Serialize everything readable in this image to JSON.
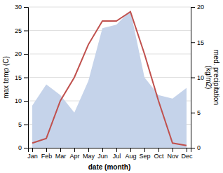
{
  "chart_data": {
    "type": "line",
    "x_label": "date (month)",
    "y_label": "max temp (C)",
    "y2_label": "med. precipitation\n(kg/m2)",
    "categories": [
      "Jan",
      "Feb",
      "Mar",
      "Apr",
      "May",
      "Jun",
      "Jul",
      "Aug",
      "Sep",
      "Oct",
      "Nov",
      "Dec"
    ],
    "series": [
      {
        "type": "area",
        "color": "#c5d3ea",
        "axis": "y2",
        "values": [
          6,
          9,
          7.5,
          5,
          9.5,
          17,
          17.5,
          19.5,
          10,
          7.5,
          7,
          8.5
        ]
      },
      {
        "type": "line",
        "color": "#c0504d",
        "values": [
          1,
          2,
          10,
          15,
          22,
          27,
          27,
          29,
          20,
          10,
          1,
          0.5
        ]
      }
    ],
    "ylim": [
      0,
      30
    ],
    "yticks": [
      0,
      5,
      10,
      15,
      20,
      25,
      30
    ],
    "y2lim": [
      0,
      20
    ],
    "y2ticks": [
      0,
      5,
      10,
      15,
      20
    ],
    "grid": true
  }
}
